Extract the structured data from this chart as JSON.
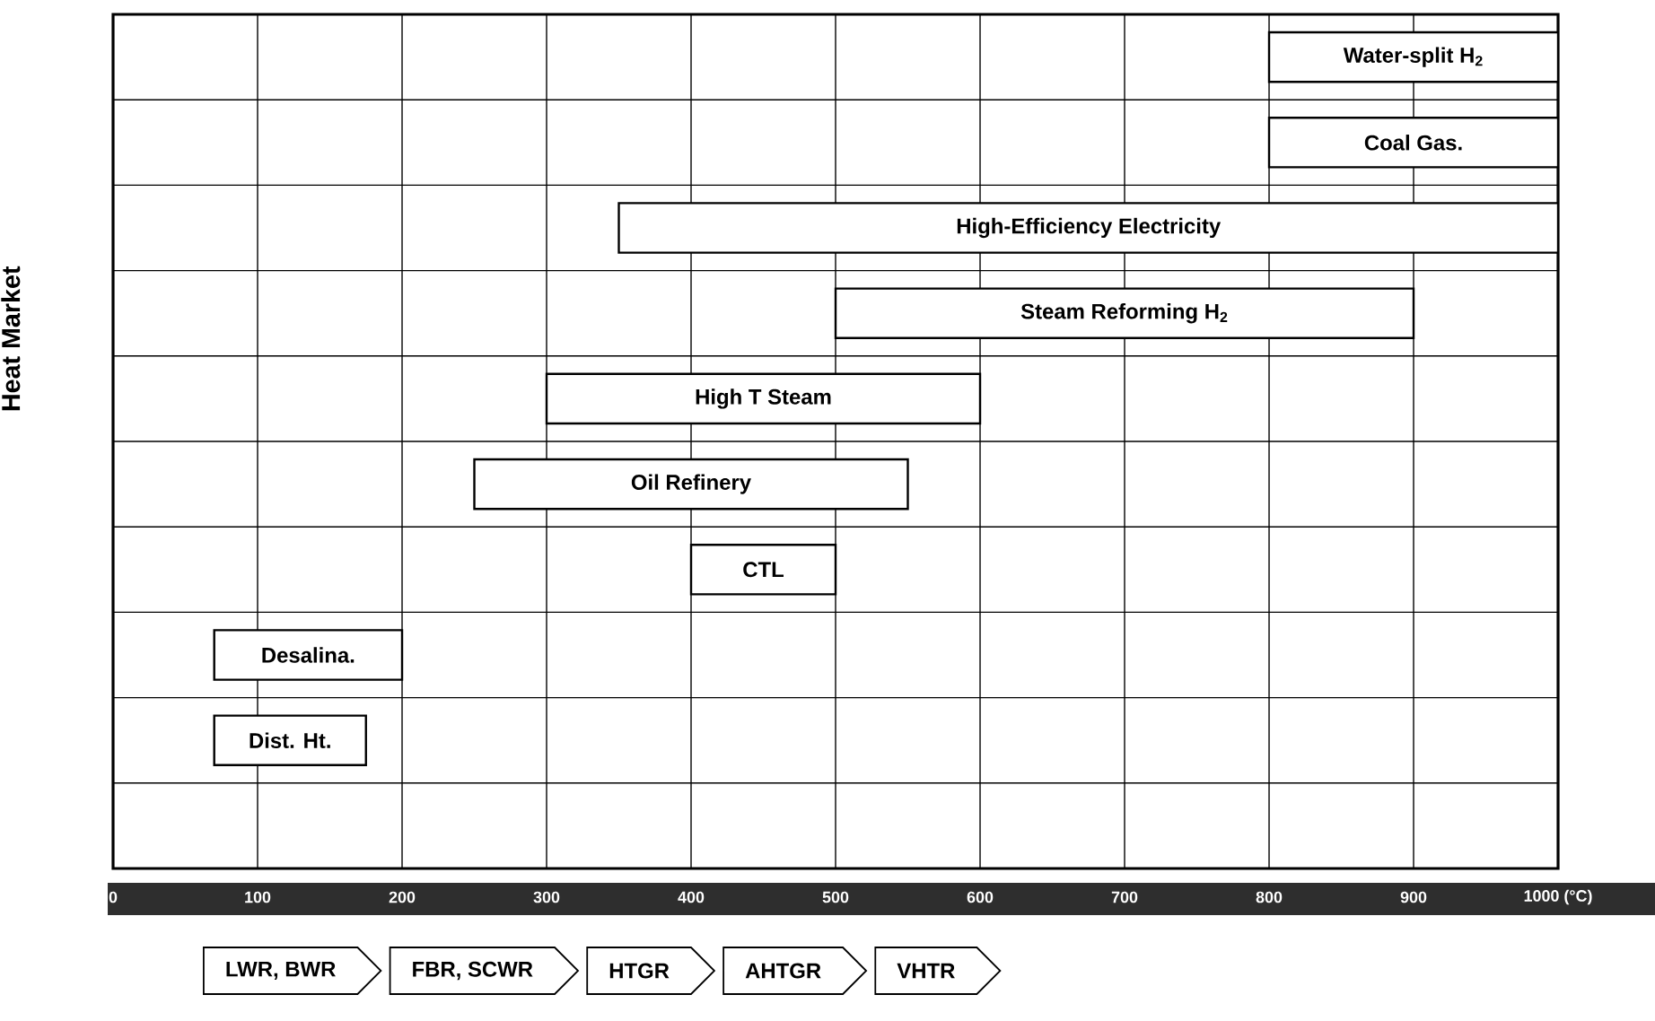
{
  "chart_data": {
    "type": "bar",
    "orientation": "horizontal",
    "ylabel": "Heat Market",
    "categories": [
      "Water-split H$_{2}$",
      "Coal Gas.",
      "High-Efficiency Electricity",
      "Steam Reforming H$_{2}$",
      "High T Steam",
      "Oil Refinery",
      "CTL",
      "Desalina.",
      "Dist. Ht.",
      null
    ],
    "base": [
      800,
      800,
      350,
      500,
      300,
      250,
      400,
      70,
      70,
      null
    ],
    "values": [
      200,
      200,
      650,
      400,
      300,
      300,
      100,
      130,
      105,
      null
    ],
    "color": "#ffffff",
    "xlim": [
      0,
      1000
    ],
    "xticks": [
      0,
      100,
      200,
      300,
      400,
      500,
      600,
      700,
      800,
      900,
      {
        "value": 1000,
        "label": "1000 (°C)"
      }
    ],
    "grid": true,
    "tick_labels": "x",
    "annotations": [
      "LWR, BWR",
      "FBR, SCWR",
      "HTGR",
      "AHTGR",
      "VHTR"
    ]
  }
}
